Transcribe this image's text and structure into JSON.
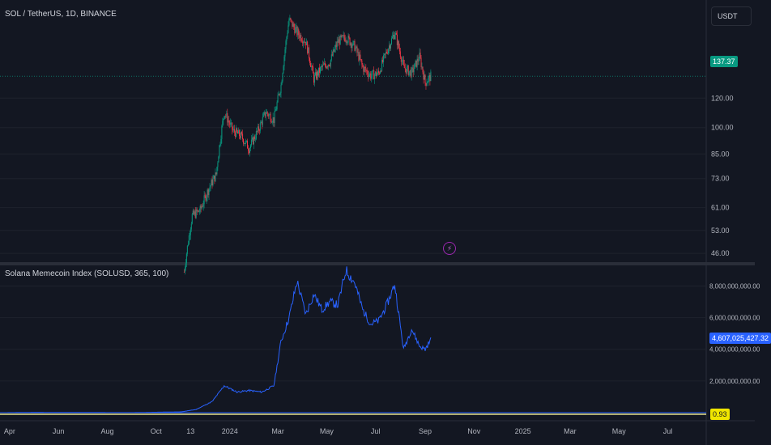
{
  "header": {
    "symbol_title": "SOL / TetherUS, 1D, BINANCE",
    "currency_button": "USDT"
  },
  "indicator": {
    "title": "Solana Memecoin Index (SOLUSD, 365, 100)"
  },
  "badges": {
    "price": "137.37",
    "index_value": "4,607,025,427.32",
    "ratio": "0.93"
  },
  "icons": {
    "alert": "lightning-bolt-icon",
    "bolt_glyph": "⚡"
  },
  "colors": {
    "background": "#131722",
    "grid": "#2a2e39",
    "up": "#089981",
    "down": "#f23645",
    "index_line": "#2962ff",
    "ratio_line": "#e8e28a",
    "baseline_line": "#2962ff"
  },
  "chart_data": [
    {
      "type": "candlestick",
      "title": "SOL / TetherUS, 1D, BINANCE",
      "scale": "log",
      "ylim": [
        44,
        220
      ],
      "yticks": [
        "46.00",
        "53.00",
        "61.00",
        "73.00",
        "85.00",
        "100.00",
        "120.00"
      ],
      "last_price": 137.37,
      "series": [
        {
          "date": "2023-11-05",
          "close": 41
        },
        {
          "date": "2023-11-15",
          "close": 58
        },
        {
          "date": "2023-11-25",
          "close": 60
        },
        {
          "date": "2023-12-05",
          "close": 68
        },
        {
          "date": "2023-12-15",
          "close": 75
        },
        {
          "date": "2023-12-25",
          "close": 110
        },
        {
          "date": "2024-01-05",
          "close": 98
        },
        {
          "date": "2024-01-15",
          "close": 95
        },
        {
          "date": "2024-01-25",
          "close": 88
        },
        {
          "date": "2024-02-05",
          "close": 98
        },
        {
          "date": "2024-02-15",
          "close": 110
        },
        {
          "date": "2024-02-25",
          "close": 105
        },
        {
          "date": "2024-03-05",
          "close": 130
        },
        {
          "date": "2024-03-15",
          "close": 195
        },
        {
          "date": "2024-03-25",
          "close": 180
        },
        {
          "date": "2024-04-05",
          "close": 170
        },
        {
          "date": "2024-04-15",
          "close": 135
        },
        {
          "date": "2024-04-25",
          "close": 145
        },
        {
          "date": "2024-05-05",
          "close": 150
        },
        {
          "date": "2024-05-15",
          "close": 170
        },
        {
          "date": "2024-05-25",
          "close": 175
        },
        {
          "date": "2024-06-05",
          "close": 165
        },
        {
          "date": "2024-06-15",
          "close": 145
        },
        {
          "date": "2024-06-25",
          "close": 138
        },
        {
          "date": "2024-07-05",
          "close": 140
        },
        {
          "date": "2024-07-15",
          "close": 160
        },
        {
          "date": "2024-07-25",
          "close": 180
        },
        {
          "date": "2024-08-05",
          "close": 145
        },
        {
          "date": "2024-08-15",
          "close": 140
        },
        {
          "date": "2024-08-25",
          "close": 155
        },
        {
          "date": "2024-09-01",
          "close": 132
        },
        {
          "date": "2024-09-08",
          "close": 137.37
        }
      ]
    },
    {
      "type": "line",
      "title": "Solana Memecoin Index (SOLUSD, 365, 100)",
      "ylim": [
        0,
        9200000000
      ],
      "yticks": [
        "2,000,000,000.00",
        "4,000,000,000.00",
        "6,000,000,000.00",
        "8,000,000,000.00"
      ],
      "last_value": 4607025427.32,
      "series": [
        {
          "date": "2023-03-25",
          "value": 0
        },
        {
          "date": "2023-05-01",
          "value": 20000000
        },
        {
          "date": "2023-07-01",
          "value": 10000000
        },
        {
          "date": "2023-09-01",
          "value": 5000000
        },
        {
          "date": "2023-11-01",
          "value": 50000000
        },
        {
          "date": "2023-11-20",
          "value": 200000000
        },
        {
          "date": "2023-12-10",
          "value": 700000000
        },
        {
          "date": "2023-12-25",
          "value": 1700000000
        },
        {
          "date": "2024-01-10",
          "value": 1300000000
        },
        {
          "date": "2024-01-25",
          "value": 1400000000
        },
        {
          "date": "2024-02-10",
          "value": 1300000000
        },
        {
          "date": "2024-02-25",
          "value": 1700000000
        },
        {
          "date": "2024-03-05",
          "value": 4500000000
        },
        {
          "date": "2024-03-15",
          "value": 6000000000
        },
        {
          "date": "2024-03-25",
          "value": 8300000000
        },
        {
          "date": "2024-04-05",
          "value": 6200000000
        },
        {
          "date": "2024-04-15",
          "value": 7500000000
        },
        {
          "date": "2024-04-25",
          "value": 6500000000
        },
        {
          "date": "2024-05-05",
          "value": 7000000000
        },
        {
          "date": "2024-05-15",
          "value": 6800000000
        },
        {
          "date": "2024-05-25",
          "value": 9000000000
        },
        {
          "date": "2024-06-05",
          "value": 8200000000
        },
        {
          "date": "2024-06-15",
          "value": 6500000000
        },
        {
          "date": "2024-06-25",
          "value": 5600000000
        },
        {
          "date": "2024-07-05",
          "value": 5800000000
        },
        {
          "date": "2024-07-15",
          "value": 6800000000
        },
        {
          "date": "2024-07-25",
          "value": 8100000000
        },
        {
          "date": "2024-08-05",
          "value": 4000000000
        },
        {
          "date": "2024-08-15",
          "value": 5300000000
        },
        {
          "date": "2024-08-25",
          "value": 4200000000
        },
        {
          "date": "2024-09-01",
          "value": 4000000000
        },
        {
          "date": "2024-09-08",
          "value": 4607025427.32
        }
      ]
    }
  ],
  "x_axis": {
    "ticks": [
      {
        "label": "Apr",
        "date": "2023-04-01"
      },
      {
        "label": "Jun",
        "date": "2023-06-01"
      },
      {
        "label": "Aug",
        "date": "2023-08-01"
      },
      {
        "label": "Oct",
        "date": "2023-10-01"
      },
      {
        "label": "13",
        "date": "2023-11-13"
      },
      {
        "label": "2024",
        "date": "2024-01-01"
      },
      {
        "label": "Mar",
        "date": "2024-03-01"
      },
      {
        "label": "May",
        "date": "2024-05-01"
      },
      {
        "label": "Jul",
        "date": "2024-07-01"
      },
      {
        "label": "Sep",
        "date": "2024-09-01"
      },
      {
        "label": "Nov",
        "date": "2024-11-01"
      },
      {
        "label": "2025",
        "date": "2025-01-01"
      },
      {
        "label": "Mar",
        "date": "2025-03-01"
      },
      {
        "label": "May",
        "date": "2025-05-01"
      },
      {
        "label": "Jul",
        "date": "2025-07-01"
      }
    ],
    "range": [
      "2023-03-20",
      "2025-08-18"
    ]
  },
  "ratio_line_value": "0.93"
}
